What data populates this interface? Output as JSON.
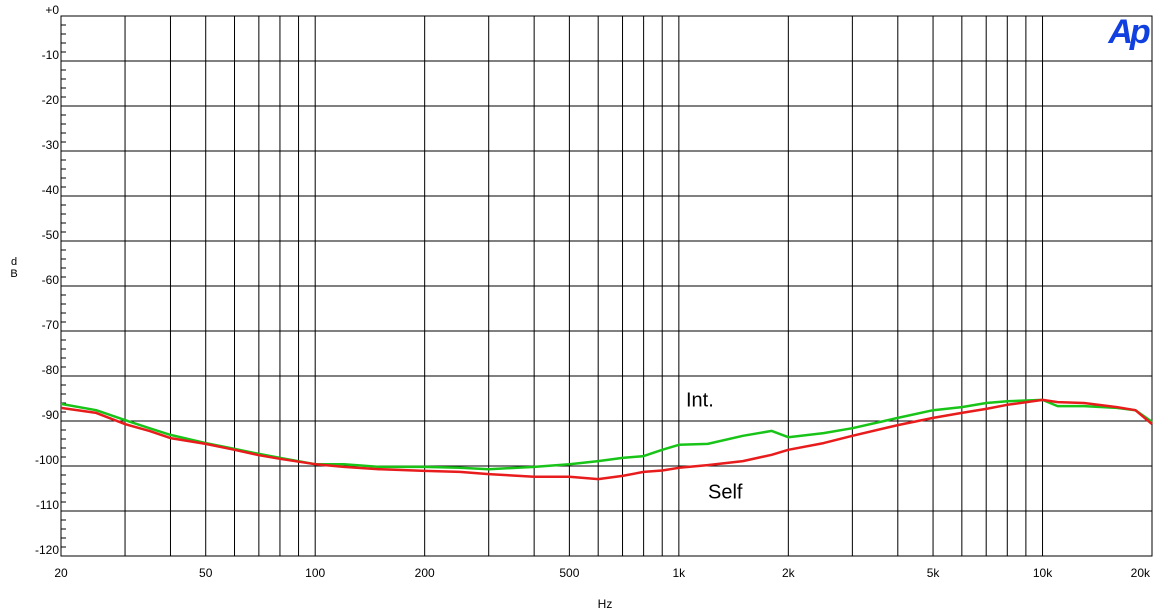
{
  "chart_data": {
    "type": "line",
    "logo": "Ap",
    "x_label": "Hz",
    "y_label": "dB",
    "xscale": "log",
    "grid": true,
    "xlim": [
      20,
      20000
    ],
    "ylim": [
      -120,
      0
    ],
    "xticks": [
      20,
      50,
      100,
      200,
      500,
      {
        "value": 1000,
        "label": "1k"
      },
      {
        "value": 2000,
        "label": "2k"
      },
      {
        "value": 5000,
        "label": "5k"
      },
      {
        "value": 10000,
        "label": "10k"
      },
      {
        "value": 20000,
        "label": "20k"
      }
    ],
    "xminor": [
      30,
      40,
      60,
      70,
      80,
      90,
      300,
      400,
      600,
      700,
      800,
      900,
      3000,
      4000,
      6000,
      7000,
      8000,
      9000
    ],
    "yticks": [
      {
        "value": 0,
        "label": "+0"
      },
      -10,
      -20,
      -30,
      -40,
      -50,
      -60,
      -70,
      -80,
      -90,
      -100,
      -110,
      -120
    ],
    "x": [
      20,
      25,
      30,
      35,
      40,
      50,
      60,
      70,
      80,
      100,
      120,
      150,
      200,
      250,
      300,
      400,
      500,
      600,
      700,
      800,
      900,
      1000,
      1200,
      1500,
      1800,
      2000,
      2500,
      3000,
      4000,
      5000,
      6000,
      7000,
      8000,
      10000,
      11000,
      13000,
      16000,
      18000,
      20000
    ],
    "series": [
      {
        "name": "Int.",
        "color": "#19c419",
        "values": [
          -86.2,
          -87.6,
          -89.8,
          -91.6,
          -93.1,
          -94.9,
          -96.2,
          -97.3,
          -98.2,
          -99.6,
          -99.6,
          -100.2,
          -100.2,
          -100.4,
          -100.7,
          -100.2,
          -99.6,
          -98.9,
          -98.2,
          -97.8,
          -96.4,
          -95.3,
          -95.1,
          -93.3,
          -92.2,
          -93.6,
          -92.7,
          -91.6,
          -89.3,
          -87.6,
          -86.9,
          -86.0,
          -85.6,
          -85.3,
          -86.7,
          -86.7,
          -87.1,
          -87.6,
          -90.2
        ]
      },
      {
        "name": "Self",
        "color": "#e81c1c",
        "values": [
          -87.1,
          -88.2,
          -90.7,
          -92.2,
          -93.8,
          -95.1,
          -96.4,
          -97.6,
          -98.4,
          -99.6,
          -100.2,
          -100.7,
          -101.1,
          -101.3,
          -101.8,
          -102.4,
          -102.4,
          -102.9,
          -102.2,
          -101.3,
          -101.0,
          -100.4,
          -99.8,
          -98.9,
          -97.5,
          -96.4,
          -94.9,
          -93.3,
          -90.9,
          -89.3,
          -88.2,
          -87.3,
          -86.4,
          -85.3,
          -85.8,
          -86.0,
          -86.9,
          -87.6,
          -90.7
        ]
      }
    ]
  }
}
